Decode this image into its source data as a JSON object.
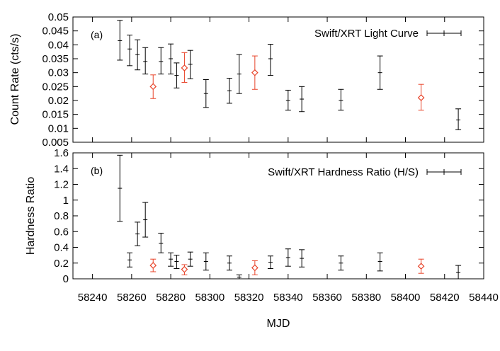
{
  "chart_data": [
    {
      "type": "scatter",
      "panel_label": "(a)",
      "ylabel": "Count Rate (cts/s)",
      "xlabel": "",
      "xlim": [
        58230,
        58440
      ],
      "ylim": [
        0.005,
        0.05
      ],
      "yticks": [
        "0.005",
        "0.01",
        "0.015",
        "0.02",
        "0.025",
        "0.03",
        "0.035",
        "0.04",
        "0.045",
        "0.05"
      ],
      "legend": {
        "label": "Swift/XRT Light Curve",
        "placement": "top-right"
      },
      "series": [
        {
          "name": "Swift/XRT Light Curve",
          "color": "#000000",
          "marker": "none",
          "points": [
            {
              "x": 58254,
              "y": 0.0415,
              "lo": 0.0345,
              "hi": 0.0488
            },
            {
              "x": 58259,
              "y": 0.0385,
              "lo": 0.0325,
              "hi": 0.0435
            },
            {
              "x": 58263,
              "y": 0.0365,
              "lo": 0.031,
              "hi": 0.0418
            },
            {
              "x": 58267,
              "y": 0.034,
              "lo": 0.0295,
              "hi": 0.039
            },
            {
              "x": 58275,
              "y": 0.034,
              "lo": 0.0295,
              "hi": 0.039
            },
            {
              "x": 58280,
              "y": 0.035,
              "lo": 0.0295,
              "hi": 0.0403
            },
            {
              "x": 58283,
              "y": 0.029,
              "lo": 0.0245,
              "hi": 0.0335
            },
            {
              "x": 58290,
              "y": 0.033,
              "lo": 0.0278,
              "hi": 0.038
            },
            {
              "x": 58298,
              "y": 0.0225,
              "lo": 0.0175,
              "hi": 0.0275
            },
            {
              "x": 58310,
              "y": 0.0235,
              "lo": 0.019,
              "hi": 0.028
            },
            {
              "x": 58315,
              "y": 0.0295,
              "lo": 0.0225,
              "hi": 0.0365
            },
            {
              "x": 58331,
              "y": 0.035,
              "lo": 0.029,
              "hi": 0.0402
            },
            {
              "x": 58340,
              "y": 0.02,
              "lo": 0.0165,
              "hi": 0.0237
            },
            {
              "x": 58347,
              "y": 0.0205,
              "lo": 0.016,
              "hi": 0.025
            },
            {
              "x": 58367,
              "y": 0.02,
              "lo": 0.0165,
              "hi": 0.024
            },
            {
              "x": 58387,
              "y": 0.03,
              "lo": 0.024,
              "hi": 0.036
            },
            {
              "x": 58427,
              "y": 0.013,
              "lo": 0.0095,
              "hi": 0.017
            }
          ]
        },
        {
          "name": "",
          "color": "#e8442a",
          "marker": "diamond",
          "points": [
            {
              "x": 58271,
              "y": 0.025,
              "lo": 0.0207,
              "hi": 0.0292
            },
            {
              "x": 58287,
              "y": 0.0317,
              "lo": 0.0265,
              "hi": 0.0372
            },
            {
              "x": 58323,
              "y": 0.03,
              "lo": 0.024,
              "hi": 0.036
            },
            {
              "x": 58408,
              "y": 0.021,
              "lo": 0.0165,
              "hi": 0.0258
            }
          ]
        }
      ]
    },
    {
      "type": "scatter",
      "panel_label": "(b)",
      "ylabel": "Hardness Ratio",
      "xlabel": "MJD",
      "xlim": [
        58230,
        58440
      ],
      "ylim": [
        0,
        1.6
      ],
      "xticks": [
        "58240",
        "58260",
        "58280",
        "58300",
        "58320",
        "58340",
        "58360",
        "58380",
        "58400",
        "58420",
        "58440"
      ],
      "yticks": [
        "0",
        "0.2",
        "0.4",
        "0.6",
        "0.8",
        "1",
        "1.2",
        "1.4",
        "1.6"
      ],
      "legend": {
        "label": "Swift/XRT Hardness Ratio (H/S)",
        "placement": "top-right"
      },
      "series": [
        {
          "name": "Swift/XRT Hardness Ratio (H/S)",
          "color": "#000000",
          "marker": "none",
          "points": [
            {
              "x": 58254,
              "y": 1.15,
              "lo": 0.73,
              "hi": 1.57
            },
            {
              "x": 58259,
              "y": 0.24,
              "lo": 0.15,
              "hi": 0.33
            },
            {
              "x": 58263,
              "y": 0.57,
              "lo": 0.42,
              "hi": 0.72
            },
            {
              "x": 58267,
              "y": 0.75,
              "lo": 0.53,
              "hi": 0.97
            },
            {
              "x": 58275,
              "y": 0.45,
              "lo": 0.33,
              "hi": 0.58
            },
            {
              "x": 58280,
              "y": 0.25,
              "lo": 0.16,
              "hi": 0.33
            },
            {
              "x": 58283,
              "y": 0.22,
              "lo": 0.13,
              "hi": 0.3
            },
            {
              "x": 58290,
              "y": 0.25,
              "lo": 0.16,
              "hi": 0.34
            },
            {
              "x": 58298,
              "y": 0.22,
              "lo": 0.11,
              "hi": 0.33
            },
            {
              "x": 58310,
              "y": 0.2,
              "lo": 0.11,
              "hi": 0.29
            },
            {
              "x": 58315,
              "y": 0.02,
              "lo": 0.0,
              "hi": 0.05
            },
            {
              "x": 58331,
              "y": 0.21,
              "lo": 0.13,
              "hi": 0.29
            },
            {
              "x": 58340,
              "y": 0.27,
              "lo": 0.16,
              "hi": 0.38
            },
            {
              "x": 58347,
              "y": 0.26,
              "lo": 0.15,
              "hi": 0.37
            },
            {
              "x": 58367,
              "y": 0.2,
              "lo": 0.11,
              "hi": 0.29
            },
            {
              "x": 58387,
              "y": 0.22,
              "lo": 0.1,
              "hi": 0.33
            },
            {
              "x": 58427,
              "y": 0.08,
              "lo": 0.0,
              "hi": 0.17
            }
          ]
        },
        {
          "name": "",
          "color": "#e8442a",
          "marker": "diamond",
          "points": [
            {
              "x": 58271,
              "y": 0.17,
              "lo": 0.09,
              "hi": 0.25
            },
            {
              "x": 58287,
              "y": 0.12,
              "lo": 0.05,
              "hi": 0.18
            },
            {
              "x": 58323,
              "y": 0.14,
              "lo": 0.05,
              "hi": 0.23
            },
            {
              "x": 58408,
              "y": 0.16,
              "lo": 0.07,
              "hi": 0.25
            }
          ]
        }
      ]
    }
  ]
}
